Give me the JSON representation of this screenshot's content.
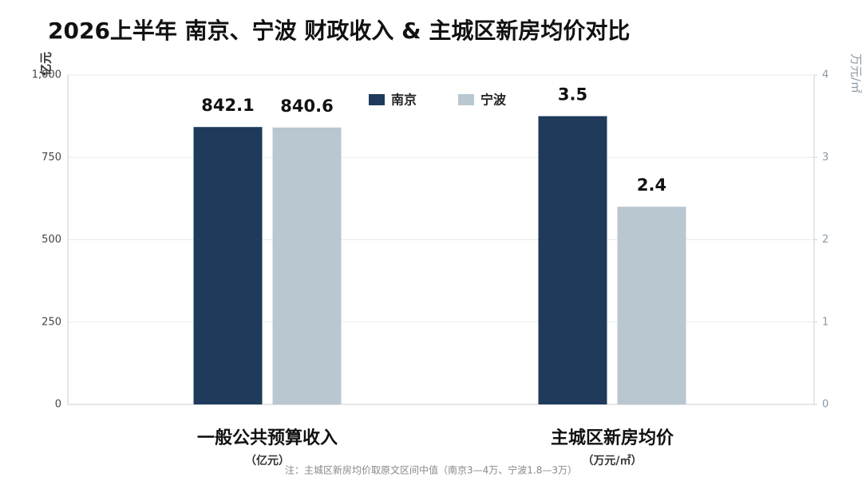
{
  "chart_data": {
    "type": "bar",
    "title": "2026上半年 南京、宁波 财政收入 & 主城区新房均价对比",
    "y_label": "亿元",
    "y2_label": "万元/㎡",
    "categories": [
      "一般公共预算收入",
      "主城区新房均价"
    ],
    "category_units": [
      "（亿元）",
      "（万元/㎡）"
    ],
    "category_axes": [
      "y",
      "y2"
    ],
    "series": [
      {
        "name": "南京",
        "color": "#1f3a5a",
        "values": [
          842.1,
          3.5
        ]
      },
      {
        "name": "宁波",
        "color": "#b8c7d0",
        "values": [
          840.6,
          2.4
        ]
      }
    ],
    "ylim": [
      0,
      1000
    ],
    "yticks": [
      0,
      250,
      500,
      750,
      {
        "value": 1000,
        "label": "1,000"
      }
    ],
    "y2lim": [
      0,
      4
    ],
    "y2ticks": [
      0,
      1,
      2,
      3,
      4
    ],
    "grid": true,
    "legend": "top",
    "note": "注：主城区新房均价取原文区间中值（南京3—4万、宁波1.8—3万）"
  }
}
